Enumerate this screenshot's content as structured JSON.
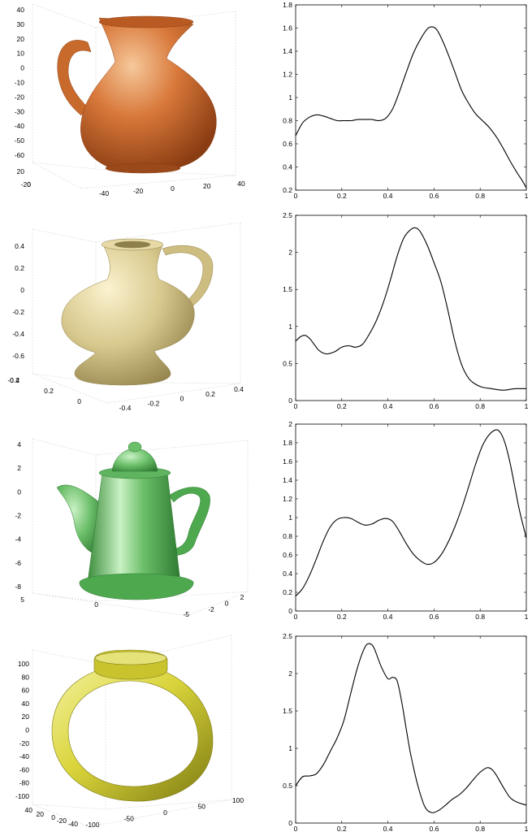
{
  "chart_data": [
    {
      "type": "image",
      "object": "jug",
      "color": "#d3773a",
      "zticks": [
        "40",
        "30",
        "20",
        "10",
        "0",
        "-10",
        "-20",
        "-30",
        "-40",
        "-50",
        "-60"
      ],
      "yticks": [
        "20",
        "0",
        "-20"
      ],
      "xticks": [
        "-40",
        "-20",
        "0",
        "20",
        "40"
      ]
    },
    {
      "type": "line",
      "xlim": [
        0,
        1
      ],
      "ylim": [
        0.2,
        1.8
      ],
      "xticks": [
        "0",
        "0.2",
        "0.4",
        "0.6",
        "0.8",
        "1"
      ],
      "yticks": [
        "0.2",
        "0.4",
        "0.6",
        "0.8",
        "1",
        "1.2",
        "1.4",
        "1.6",
        "1.8"
      ],
      "x": [
        0,
        0.03,
        0.06,
        0.09,
        0.12,
        0.15,
        0.18,
        0.21,
        0.24,
        0.27,
        0.3,
        0.33,
        0.36,
        0.39,
        0.42,
        0.45,
        0.48,
        0.51,
        0.54,
        0.57,
        0.59,
        0.61,
        0.63,
        0.66,
        0.69,
        0.72,
        0.75,
        0.78,
        0.81,
        0.84,
        0.87,
        0.9,
        0.93,
        0.96,
        0.98,
        1
      ],
      "y": [
        0.67,
        0.78,
        0.83,
        0.85,
        0.84,
        0.82,
        0.8,
        0.8,
        0.8,
        0.81,
        0.81,
        0.81,
        0.8,
        0.82,
        0.9,
        1.05,
        1.22,
        1.38,
        1.5,
        1.59,
        1.61,
        1.59,
        1.52,
        1.38,
        1.22,
        1.06,
        0.95,
        0.86,
        0.8,
        0.74,
        0.66,
        0.56,
        0.45,
        0.35,
        0.29,
        0.22
      ]
    },
    {
      "type": "image",
      "object": "vase",
      "color": "#d8c98e",
      "zticks": [
        "0.4",
        "0.2",
        "0",
        "-0.2",
        "-0.4",
        "-0.6"
      ],
      "yticks": [
        "0.4",
        "0.2",
        "0",
        "-0.2"
      ],
      "xticks": [
        "-0.4",
        "-0.2",
        "0",
        "0.2",
        "0.4"
      ]
    },
    {
      "type": "line",
      "xlim": [
        0,
        1
      ],
      "ylim": [
        0,
        2.5
      ],
      "xticks": [
        "0",
        "0.2",
        "0.4",
        "0.6",
        "0.8",
        "1"
      ],
      "yticks": [
        "0",
        "0.5",
        "1",
        "1.5",
        "2",
        "2.5"
      ],
      "x": [
        0,
        0.02,
        0.04,
        0.06,
        0.08,
        0.1,
        0.12,
        0.14,
        0.17,
        0.2,
        0.23,
        0.26,
        0.29,
        0.32,
        0.35,
        0.38,
        0.41,
        0.44,
        0.47,
        0.5,
        0.52,
        0.54,
        0.57,
        0.6,
        0.63,
        0.66,
        0.69,
        0.72,
        0.75,
        0.78,
        0.81,
        0.85,
        0.9,
        0.95,
        1
      ],
      "y": [
        0.8,
        0.86,
        0.88,
        0.84,
        0.76,
        0.68,
        0.64,
        0.63,
        0.66,
        0.72,
        0.74,
        0.72,
        0.76,
        0.9,
        1.08,
        1.32,
        1.62,
        1.95,
        2.2,
        2.31,
        2.33,
        2.28,
        2.1,
        1.86,
        1.6,
        1.22,
        0.8,
        0.48,
        0.3,
        0.22,
        0.18,
        0.16,
        0.14,
        0.16,
        0.16
      ]
    },
    {
      "type": "image",
      "object": "teapot",
      "color": "#6cbf6a",
      "zticks": [
        "4",
        "2",
        "0",
        "-2",
        "-4",
        "-6",
        "-8"
      ],
      "yticks": [
        "5",
        "0",
        "-5"
      ],
      "xticks": [
        "-2",
        "0",
        "2"
      ]
    },
    {
      "type": "line",
      "xlim": [
        0,
        1
      ],
      "ylim": [
        0,
        2
      ],
      "xticks": [
        "0",
        "0.2",
        "0.4",
        "0.6",
        "0.8",
        "1"
      ],
      "yticks": [
        "0",
        "0.2",
        "0.4",
        "0.6",
        "0.8",
        "1",
        "1.2",
        "1.4",
        "1.6",
        "1.8",
        "2"
      ],
      "x": [
        0,
        0.03,
        0.06,
        0.09,
        0.12,
        0.15,
        0.18,
        0.21,
        0.24,
        0.27,
        0.3,
        0.33,
        0.36,
        0.39,
        0.42,
        0.45,
        0.48,
        0.51,
        0.54,
        0.57,
        0.6,
        0.63,
        0.66,
        0.69,
        0.72,
        0.75,
        0.78,
        0.81,
        0.84,
        0.87,
        0.89,
        0.91,
        0.93,
        0.95,
        0.97,
        1
      ],
      "y": [
        0.16,
        0.24,
        0.38,
        0.56,
        0.75,
        0.9,
        0.98,
        1.0,
        0.99,
        0.95,
        0.92,
        0.93,
        0.97,
        0.99,
        0.96,
        0.85,
        0.72,
        0.61,
        0.54,
        0.5,
        0.52,
        0.6,
        0.73,
        0.9,
        1.1,
        1.33,
        1.57,
        1.77,
        1.89,
        1.94,
        1.9,
        1.78,
        1.58,
        1.33,
        1.08,
        0.78
      ]
    },
    {
      "type": "image",
      "object": "ring",
      "color": "#d9d43a",
      "zticks": [
        "100",
        "80",
        "60",
        "40",
        "20",
        "0",
        "-20",
        "-40",
        "-60",
        "-80",
        "-100"
      ],
      "yticks": [
        "40",
        "20",
        "0",
        "-20",
        "-40"
      ],
      "xticks": [
        "-100",
        "-50",
        "0",
        "50",
        "100"
      ]
    },
    {
      "type": "line",
      "xlim": [
        0,
        1
      ],
      "ylim": [
        0,
        2.5
      ],
      "xticks": [
        "0",
        "0.2",
        "0.4",
        "0.6",
        "0.8",
        "1"
      ],
      "yticks": [
        "0",
        "0.5",
        "1",
        "1.5",
        "2",
        "2.5"
      ],
      "x": [
        0,
        0.03,
        0.06,
        0.09,
        0.12,
        0.15,
        0.18,
        0.21,
        0.24,
        0.27,
        0.3,
        0.32,
        0.34,
        0.37,
        0.4,
        0.42,
        0.44,
        0.46,
        0.48,
        0.5,
        0.53,
        0.56,
        0.59,
        0.62,
        0.65,
        0.68,
        0.71,
        0.74,
        0.77,
        0.8,
        0.83,
        0.85,
        0.87,
        0.9,
        0.93,
        0.96,
        1
      ],
      "y": [
        0.5,
        0.62,
        0.63,
        0.66,
        0.78,
        0.96,
        1.14,
        1.38,
        1.75,
        2.1,
        2.35,
        2.4,
        2.34,
        2.1,
        1.93,
        1.95,
        1.9,
        1.62,
        1.25,
        0.9,
        0.5,
        0.22,
        0.14,
        0.17,
        0.24,
        0.32,
        0.38,
        0.47,
        0.58,
        0.68,
        0.74,
        0.72,
        0.64,
        0.48,
        0.34,
        0.28,
        0.24
      ]
    }
  ]
}
